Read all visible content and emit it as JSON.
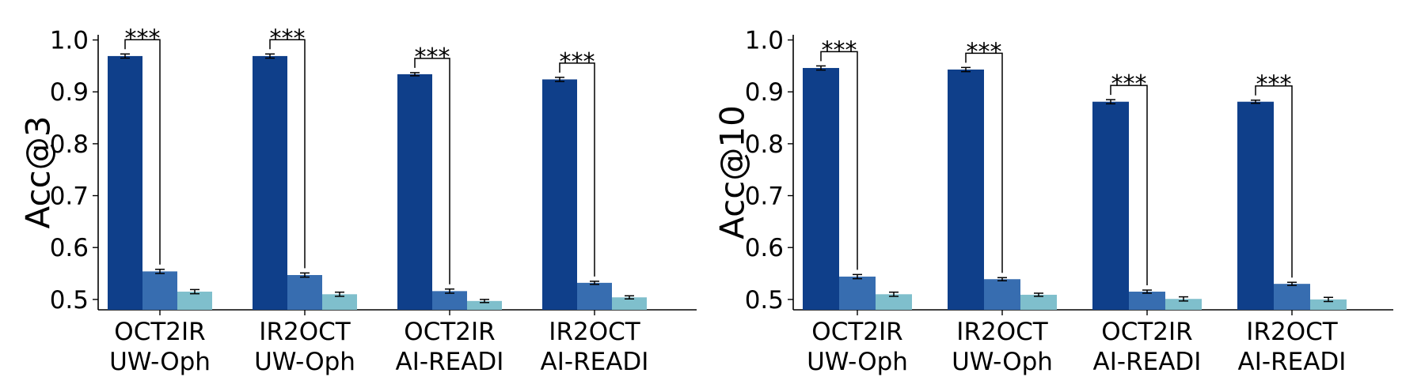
{
  "chart_data": [
    {
      "type": "bar",
      "ylabel": "Acc@3",
      "xlabel": "",
      "ylim": [
        0.48,
        1.01
      ],
      "yticks": [
        0.5,
        0.6,
        0.7,
        0.8,
        0.9,
        1.0
      ],
      "ytick_labels": [
        "0.5",
        "0.6",
        "0.7",
        "0.8",
        "0.9",
        "1.0"
      ],
      "grid": false,
      "categories": [
        [
          "OCT2IR",
          "UW-Oph"
        ],
        [
          "IR2OCT",
          "UW-Oph"
        ],
        [
          "OCT2IR",
          "AI-READI"
        ],
        [
          "IR2OCT",
          "AI-READI"
        ]
      ],
      "series": [
        {
          "color": "#0f3f8a",
          "values": [
            0.969,
            0.969,
            0.934,
            0.924
          ],
          "errors": [
            0.004,
            0.004,
            0.003,
            0.004
          ]
        },
        {
          "color": "#376db0",
          "values": [
            0.554,
            0.547,
            0.516,
            0.532
          ],
          "errors": [
            0.004,
            0.004,
            0.004,
            0.003
          ]
        },
        {
          "color": "#7fbfcc",
          "values": [
            0.515,
            0.51,
            0.497,
            0.504
          ],
          "errors": [
            0.004,
            0.004,
            0.003,
            0.003
          ]
        }
      ],
      "significance": {
        "label": "***",
        "pairs": [
          [
            0,
            1
          ]
        ]
      }
    },
    {
      "type": "bar",
      "ylabel": "Acc@10",
      "xlabel": "",
      "ylim": [
        0.48,
        1.01
      ],
      "yticks": [
        0.5,
        0.6,
        0.7,
        0.8,
        0.9,
        1.0
      ],
      "ytick_labels": [
        "0.5",
        "0.6",
        "0.7",
        "0.8",
        "0.9",
        "1.0"
      ],
      "grid": false,
      "categories": [
        [
          "OCT2IR",
          "UW-Oph"
        ],
        [
          "IR2OCT",
          "UW-Oph"
        ],
        [
          "OCT2IR",
          "AI-READI"
        ],
        [
          "IR2OCT",
          "AI-READI"
        ]
      ],
      "series": [
        {
          "color": "#0f3f8a",
          "values": [
            0.946,
            0.943,
            0.881,
            0.881
          ],
          "errors": [
            0.004,
            0.004,
            0.004,
            0.003
          ]
        },
        {
          "color": "#376db0",
          "values": [
            0.544,
            0.539,
            0.515,
            0.53
          ],
          "errors": [
            0.004,
            0.003,
            0.003,
            0.003
          ]
        },
        {
          "color": "#7fbfcc",
          "values": [
            0.51,
            0.509,
            0.501,
            0.5
          ],
          "errors": [
            0.004,
            0.003,
            0.004,
            0.004
          ]
        }
      ],
      "significance": {
        "label": "***",
        "pairs": [
          [
            0,
            1
          ]
        ]
      }
    }
  ]
}
